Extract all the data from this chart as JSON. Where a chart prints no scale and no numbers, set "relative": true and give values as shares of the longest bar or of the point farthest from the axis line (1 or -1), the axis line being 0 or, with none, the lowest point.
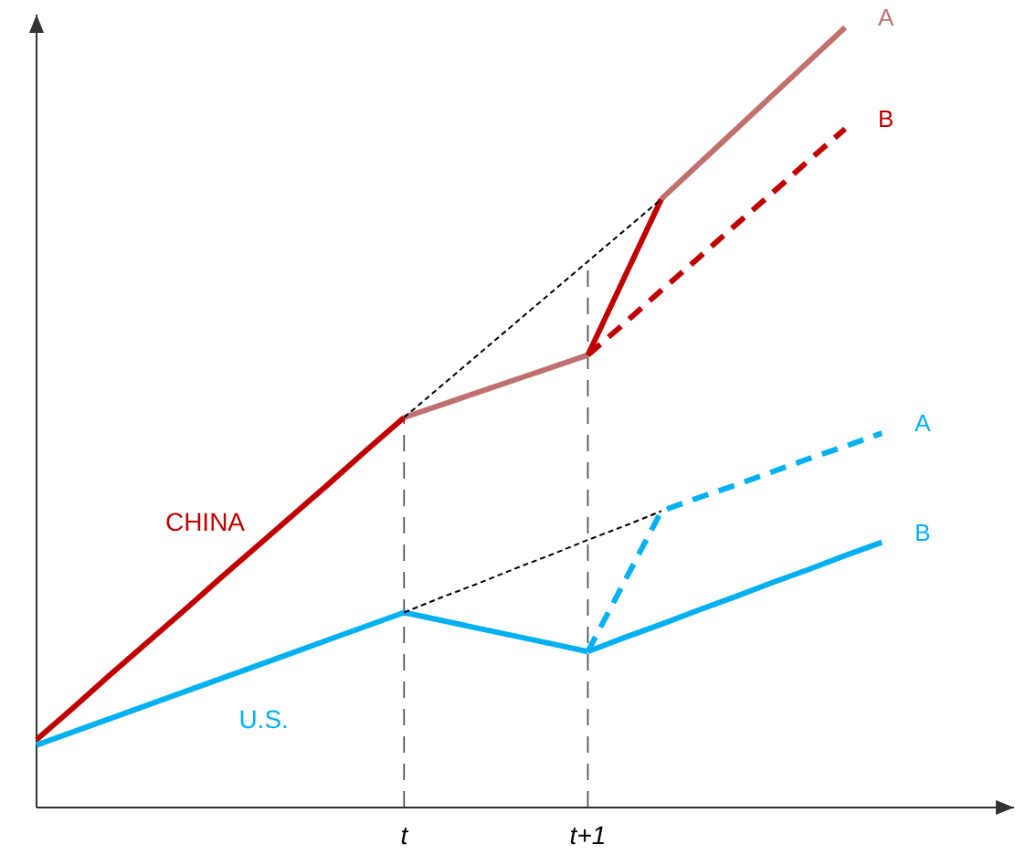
{
  "chart_data": {
    "type": "line",
    "relative": true,
    "categories": [
      null,
      null,
      null,
      null,
      null,
      null,
      null,
      null,
      null,
      null,
      "t",
      null,
      null,
      null,
      null,
      "t+1",
      null,
      null,
      null,
      null,
      null,
      null,
      null,
      null,
      null,
      null
    ],
    "series": [
      {
        "name": "CHINA",
        "color": "#c00000",
        "values": [
          0.087,
          0.128,
          0.17,
          0.211,
          0.252,
          0.294,
          0.335,
          0.376,
          0.417,
          0.459,
          0.5,
          null,
          null,
          null,
          null,
          null,
          null,
          null,
          null,
          null,
          null,
          null,
          null,
          null,
          null,
          null
        ]
      },
      {
        "color": "#c0706f",
        "values": [
          null,
          null,
          null,
          null,
          null,
          null,
          null,
          null,
          null,
          null,
          0.5,
          0.516,
          0.532,
          0.548,
          0.564,
          0.58,
          null,
          null,
          null,
          null,
          null,
          null,
          null,
          null,
          null,
          null
        ]
      },
      {
        "color": "#c00000",
        "values": [
          null,
          null,
          null,
          null,
          null,
          null,
          null,
          null,
          null,
          null,
          null,
          null,
          null,
          null,
          null,
          0.58,
          0.68,
          0.78,
          null,
          null,
          null,
          null,
          null,
          null,
          null,
          null
        ]
      },
      {
        "name": "A",
        "color": "#c0706f",
        "values": [
          null,
          null,
          null,
          null,
          null,
          null,
          null,
          null,
          null,
          null,
          null,
          null,
          null,
          null,
          null,
          null,
          null,
          0.78,
          0.824,
          0.868,
          0.912,
          0.956,
          1.0,
          null,
          null,
          null
        ]
      },
      {
        "name": "B",
        "color": "#c00000",
        "line_style": "dashed",
        "values": [
          null,
          null,
          null,
          null,
          null,
          null,
          null,
          null,
          null,
          null,
          null,
          null,
          null,
          null,
          null,
          0.58,
          0.621,
          0.663,
          0.704,
          0.746,
          0.787,
          0.829,
          0.87,
          null,
          null,
          null
        ]
      },
      {
        "color": "#000000",
        "line_style": "dotted",
        "values": [
          null,
          null,
          null,
          null,
          null,
          null,
          null,
          null,
          null,
          null,
          0.5,
          0.54,
          0.58,
          0.62,
          0.66,
          0.7,
          0.74,
          0.78,
          null,
          null,
          null,
          null,
          null,
          null,
          null,
          null
        ]
      },
      {
        "name": "U.S.",
        "color": "#00b0f0",
        "values": [
          0.08,
          0.097,
          0.114,
          0.131,
          0.148,
          0.165,
          0.182,
          0.199,
          0.216,
          0.233,
          0.25,
          0.24,
          0.23,
          0.22,
          0.21,
          0.2,
          null,
          null,
          null,
          null,
          null,
          null,
          null,
          null,
          null,
          null
        ]
      },
      {
        "name": "B",
        "color": "#00b0f0",
        "values": [
          null,
          null,
          null,
          null,
          null,
          null,
          null,
          null,
          null,
          null,
          null,
          null,
          null,
          null,
          null,
          0.2,
          0.218,
          0.235,
          0.253,
          0.27,
          0.288,
          0.305,
          0.323,
          0.34,
          null,
          null
        ]
      },
      {
        "name": "A",
        "color": "#00b0f0",
        "line_style": "dashed",
        "values": [
          null,
          null,
          null,
          null,
          null,
          null,
          null,
          null,
          null,
          null,
          null,
          null,
          null,
          null,
          null,
          0.2,
          0.29,
          0.38,
          0.397,
          0.413,
          0.43,
          0.447,
          0.463,
          0.48,
          null,
          null
        ]
      },
      {
        "color": "#000000",
        "line_style": "dotted",
        "values": [
          null,
          null,
          null,
          null,
          null,
          null,
          null,
          null,
          null,
          null,
          0.25,
          0.269,
          0.287,
          0.306,
          0.324,
          0.343,
          0.361,
          0.38,
          null,
          null,
          null,
          null,
          null,
          null,
          null,
          null
        ]
      }
    ],
    "ref_lines": [
      {
        "axis": "x",
        "value": "t",
        "color": "#444444",
        "line_style": "dashed"
      },
      {
        "axis": "x",
        "value": "t+1",
        "color": "#444444",
        "line_style": "dashed"
      }
    ]
  }
}
